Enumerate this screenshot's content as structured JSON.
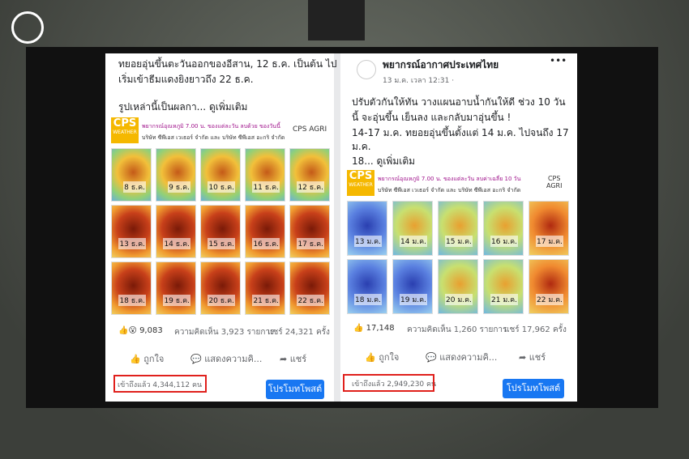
{
  "left_post": {
    "text_lines": [
      "ทยอยอุ่นขึ้นตะวันออกของอีสาน, 12 ธ.ค. เป็นต้น ไป",
      "เริ่มเข้าธีมแดงยิงยาวถึง 22 ธ.ค."
    ],
    "see_more": "รูปเหล่านี้เป็นผลกา... ดูเพิ่มเติม",
    "image": {
      "brand": [
        "CPS",
        "WEATHER"
      ],
      "caption": [
        "พยากรณ์อุณหภูมิ 7.00 น. ของแต่ละวัน ลบด้วย ของวันนี้",
        "บริษัท ซีพีเอส เวเธอร์ จำกัด และ บริษัท ซีพีเอส อะกริ จำกัด"
      ],
      "partner": "CPS AGRI",
      "maps": [
        "8 ธ.ค.",
        "9 ธ.ค.",
        "10 ธ.ค.",
        "11 ธ.ค.",
        "12 ธ.ค.",
        "13 ธ.ค.",
        "14 ธ.ค.",
        "15 ธ.ค.",
        "16 ธ.ค.",
        "17 ธ.ค.",
        "18 ธ.ค.",
        "19 ธ.ค.",
        "20 ธ.ค.",
        "21 ธ.ค.",
        "22 ธ.ค."
      ]
    },
    "reactions": "9,083",
    "comments": "ความคิดเห็น 3,923 รายการ",
    "shares": "แชร์ 24,321 ครั้ง",
    "actions": [
      "ถูกใจ",
      "แสดงความคิ...",
      "แชร์"
    ],
    "reach": "เข้าถึงแล้ว 4,344,112 คน",
    "promote": "โปรโมทโพสต์"
  },
  "right_post": {
    "page_name": "พยากรณ์อากาศประเทศไทย",
    "time": "13 ม.ค. เวลา 12:31 ·",
    "menu": "•••",
    "text_lines": [
      "ปรับตัวกันให้ทัน วางแผนอาบน้ำกันให้ดี ช่วง 10 วัน",
      "นี้ จะอุ่นขึ้น เย็นลง และกลับมาอุ่นขึ้น !",
      "14-17 ม.ค. ทยอยอุ่นขึ้นตั้งแต่ 14 ม.ค. ไปจนถึง 17",
      "ม.ค.",
      "18... ดูเพิ่มเติม"
    ],
    "image": {
      "brand": [
        "CPS",
        "WEATHER"
      ],
      "caption": [
        "พยากรณ์อุณหภูมิ 7.00 น. ของแต่ละวัน ลบค่าเฉลี่ย 10 วัน",
        "บริษัท ซีพีเอส เวเธอร์ จำกัด และ บริษัท ซีพีเอส อะกริ จำกัด"
      ],
      "partner": [
        "CPS",
        "AGRI"
      ],
      "maps": [
        "13 ม.ค.",
        "14 ม.ค.",
        "15 ม.ค.",
        "16 ม.ค.",
        "17 ม.ค.",
        "18 ม.ค.",
        "19 ม.ค.",
        "20 ม.ค.",
        "21 ม.ค.",
        "22 ม.ค."
      ]
    },
    "reactions": "17,148",
    "comments": "ความคิดเห็น 1,260 รายการ",
    "shares": "แชร์ 17,962 ครั้ง",
    "actions": [
      "ถูกใจ",
      "แสดงความคิ...",
      "แชร์"
    ],
    "reach": "เข้าถึงแล้ว 2,949,230 คน",
    "promote": "โปรโมทโพสต์"
  }
}
